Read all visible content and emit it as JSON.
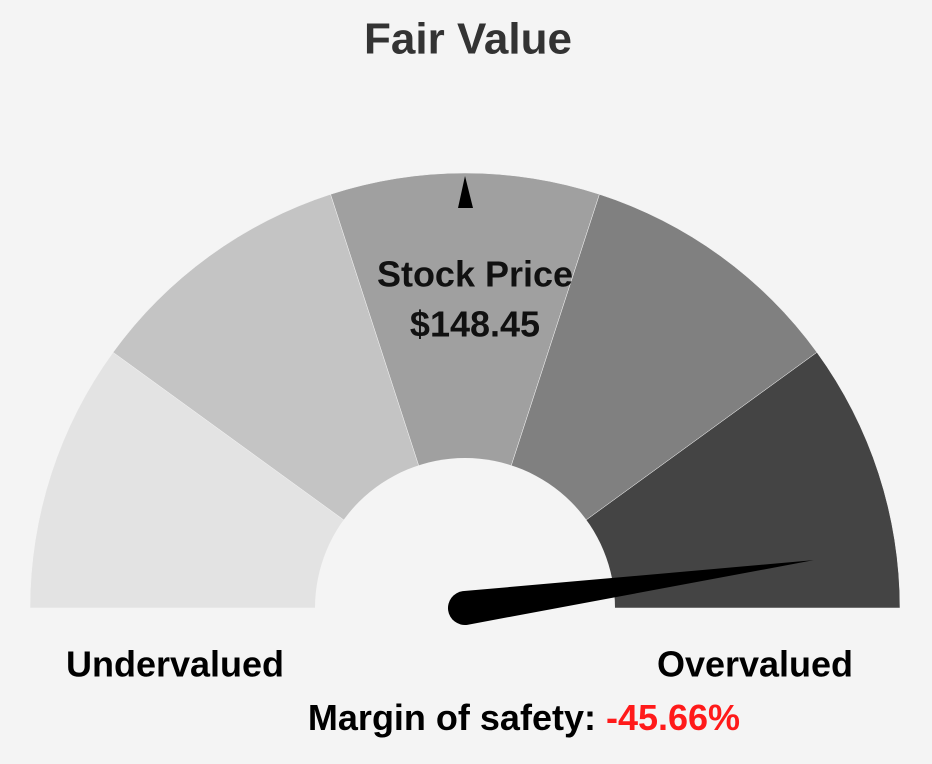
{
  "chart_data": {
    "type": "gauge",
    "title": "Fair Value",
    "center_label": "Stock Price",
    "center_value": "$148.45",
    "min_label": "Undervalued",
    "max_label": "Overvalued",
    "value_caption": "Margin of safety:",
    "value": -45.66,
    "value_label": "-45.66%",
    "value_color": "#ff1a1a",
    "range": [
      50,
      -50
    ],
    "bands": [
      "#e3e3e3",
      "#c4c4c4",
      "#a0a0a0",
      "#808080",
      "#444444"
    ],
    "needle_color": "#000000"
  }
}
